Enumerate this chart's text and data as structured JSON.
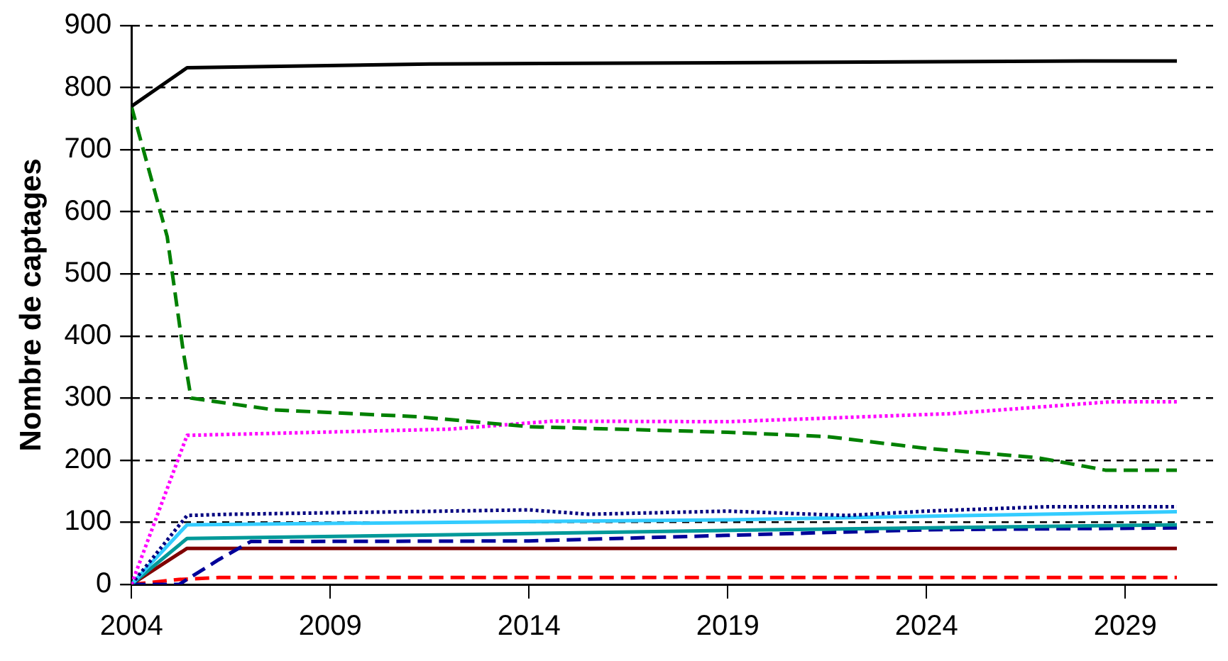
{
  "chart_data": {
    "type": "line",
    "ylabel": "Nombre de captages",
    "xlim": [
      2004,
      2031.3
    ],
    "xticks": [
      2004,
      2009,
      2014,
      2019,
      2024,
      2029
    ],
    "ylim": [
      0,
      900
    ],
    "yticks": [
      0,
      100,
      200,
      300,
      400,
      500,
      600,
      700,
      800,
      900
    ],
    "grid": "y",
    "legend": false,
    "marker": "none",
    "series": [
      {
        "color": "#000000",
        "line_style": "solid",
        "x": [
          2004,
          2005.4,
          2011.5,
          2028.6,
          2030.3
        ],
        "values": [
          770,
          832,
          838,
          843,
          843
        ]
      },
      {
        "color": "#008000",
        "line_style": "dashed",
        "x": [
          2004,
          2004.9,
          2005.3,
          2005.5,
          2007.6,
          2011.2,
          2014,
          2019,
          2021.5,
          2024,
          2026.8,
          2028.5,
          2030.3
        ],
        "values": [
          770,
          560,
          377,
          300,
          281,
          270,
          254,
          245,
          238,
          219,
          204,
          184,
          184
        ]
      },
      {
        "color": "#ff00ff",
        "line_style": "dotted",
        "x": [
          2004,
          2005.4,
          2012,
          2014.6,
          2019,
          2024.6,
          2028.6,
          2030.3
        ],
        "values": [
          0,
          240,
          250,
          263,
          262,
          275,
          294,
          294
        ]
      },
      {
        "color": "#000080",
        "line_style": "dotted",
        "x": [
          2004,
          2005.4,
          2006.5,
          2014,
          2015.5,
          2019,
          2022,
          2024,
          2027,
          2030.3
        ],
        "values": [
          0,
          111,
          113,
          120,
          113,
          118,
          111,
          118,
          125,
          125
        ]
      },
      {
        "color": "#33ccff",
        "line_style": "solid",
        "x": [
          2004,
          2005.4,
          2012,
          2019,
          2030.3
        ],
        "values": [
          0,
          96,
          100,
          104,
          117
        ]
      },
      {
        "color": "#009999",
        "line_style": "solid",
        "x": [
          2004,
          2005.4,
          2012,
          2020,
          2030.3
        ],
        "values": [
          0,
          74,
          80,
          88,
          96
        ]
      },
      {
        "color": "#000099",
        "line_style": "dashed",
        "x": [
          2004,
          2005.2,
          2006.2,
          2007,
          2014,
          2019,
          2024,
          2030.3
        ],
        "values": [
          0,
          0,
          40,
          69,
          70,
          79,
          88,
          91
        ]
      },
      {
        "color": "#800000",
        "line_style": "solid",
        "x": [
          2004,
          2005.4,
          2030.3
        ],
        "values": [
          0,
          58,
          58
        ]
      },
      {
        "color": "#ff0000",
        "line_style": "dashed",
        "x": [
          2004,
          2005.2,
          2006.2,
          2030.3
        ],
        "values": [
          0,
          8,
          11,
          11
        ]
      }
    ]
  }
}
